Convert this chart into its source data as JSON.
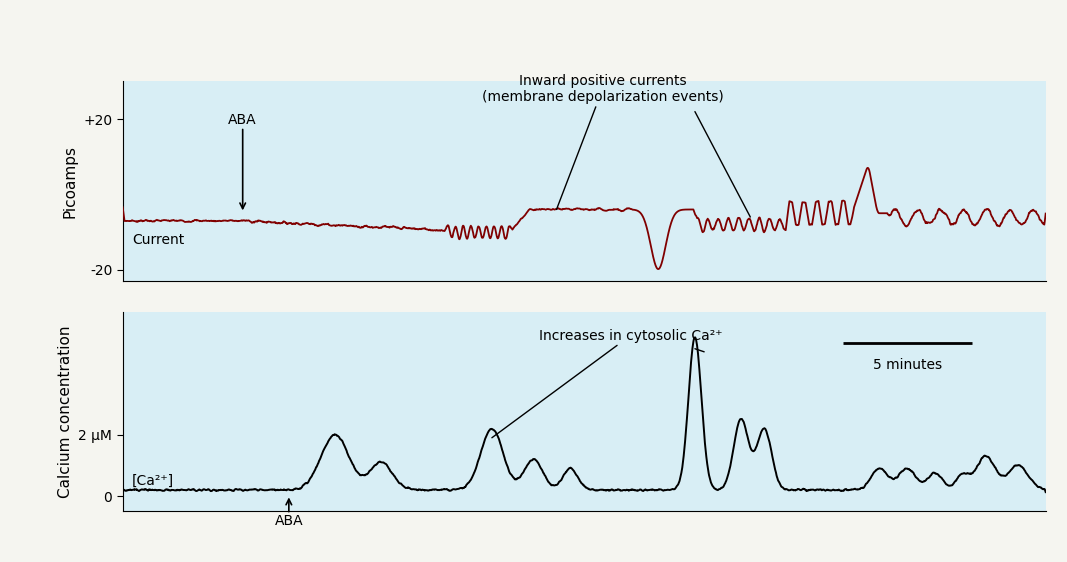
{
  "fig_background": "#f5f5f0",
  "panel_bg": "#d8eef5",
  "top_panel": {
    "ylabel": "Picoamps",
    "ylim": [
      -23,
      30
    ],
    "yticks": [
      -20,
      20
    ],
    "ytick_labels": [
      "-20",
      "+20"
    ],
    "line_color": "#800000",
    "label_text": "Current",
    "annotation_text": "Inward positive currents\n(membrane depolarization events)",
    "aba_label": "ABA"
  },
  "bottom_panel": {
    "ylabel": "Calcium concentration",
    "ylim": [
      -0.5,
      6.0
    ],
    "yticks": [
      0,
      2
    ],
    "ytick_label_0": "0",
    "ytick_label_2": "2 μM",
    "line_color": "#000000",
    "label_text": "[Ca²⁺]",
    "annotation_text": "Increases in cytosolic Ca²⁺",
    "aba_label": "ABA",
    "scale_bar_text": "5 minutes"
  },
  "xlim": [
    0,
    100
  ]
}
